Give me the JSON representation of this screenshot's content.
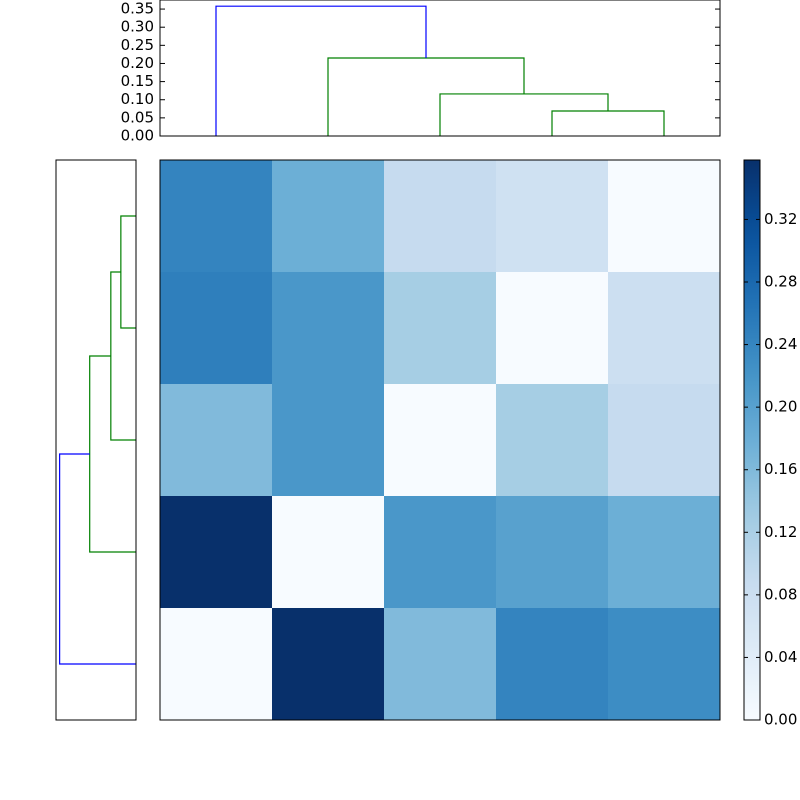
{
  "chart_data": [
    {
      "type": "dendrogram",
      "orientation": "top",
      "leaves": 5,
      "links": [
        {
          "children": [
            3,
            4
          ],
          "height": 0.069,
          "color": "#008000"
        },
        {
          "children": [
            2,
            5
          ],
          "height": 0.116,
          "color": "#008000"
        },
        {
          "children": [
            1,
            6
          ],
          "height": 0.215,
          "color": "#008000"
        },
        {
          "children": [
            0,
            7
          ],
          "height": 0.358,
          "color": "#0000ff"
        }
      ],
      "ylim": [
        0,
        0.375
      ],
      "yticks": [
        {
          "value": 0,
          "label": "0.00"
        },
        {
          "value": 0.05,
          "label": "0.05"
        },
        {
          "value": 0.1,
          "label": "0.10"
        },
        {
          "value": 0.15,
          "label": "0.15"
        },
        {
          "value": 0.2,
          "label": "0.20"
        },
        {
          "value": 0.25,
          "label": "0.25"
        },
        {
          "value": 0.3,
          "label": "0.30"
        },
        {
          "value": 0.35,
          "label": "0.35"
        }
      ]
    },
    {
      "type": "dendrogram",
      "orientation": "left",
      "leaves": 5,
      "links": [
        {
          "children": [
            0,
            1
          ],
          "height": 0.071,
          "color": "#008000"
        },
        {
          "children": [
            2,
            5
          ],
          "height": 0.118,
          "color": "#008000"
        },
        {
          "children": [
            3,
            6
          ],
          "height": 0.217,
          "color": "#008000"
        },
        {
          "children": [
            4,
            7
          ],
          "height": 0.358,
          "color": "#0000ff"
        }
      ],
      "xlim": [
        0,
        0.375
      ]
    },
    {
      "type": "heatmap",
      "colormap": "Blues",
      "values": [
        [
          0.243,
          0.178,
          0.09,
          0.072,
          0
        ],
        [
          0.25,
          0.215,
          0.125,
          0,
          0.078
        ],
        [
          0.16,
          0.215,
          0,
          0.125,
          0.09
        ],
        [
          0.358,
          0,
          0.215,
          0.2,
          0.178
        ],
        [
          0,
          0.358,
          0.16,
          0.243,
          0.23
        ]
      ],
      "zlim": [
        0,
        0.358
      ],
      "colorbar_ticks": [
        {
          "value": 0,
          "label": "0.00"
        },
        {
          "value": 0.04,
          "label": "0.04"
        },
        {
          "value": 0.08,
          "label": "0.08"
        },
        {
          "value": 0.12,
          "label": "0.12"
        },
        {
          "value": 0.16,
          "label": "0.16"
        },
        {
          "value": 0.2,
          "label": "0.20"
        },
        {
          "value": 0.24,
          "label": "0.24"
        },
        {
          "value": 0.28,
          "label": "0.28"
        },
        {
          "value": 0.32,
          "label": "0.32"
        }
      ]
    }
  ]
}
